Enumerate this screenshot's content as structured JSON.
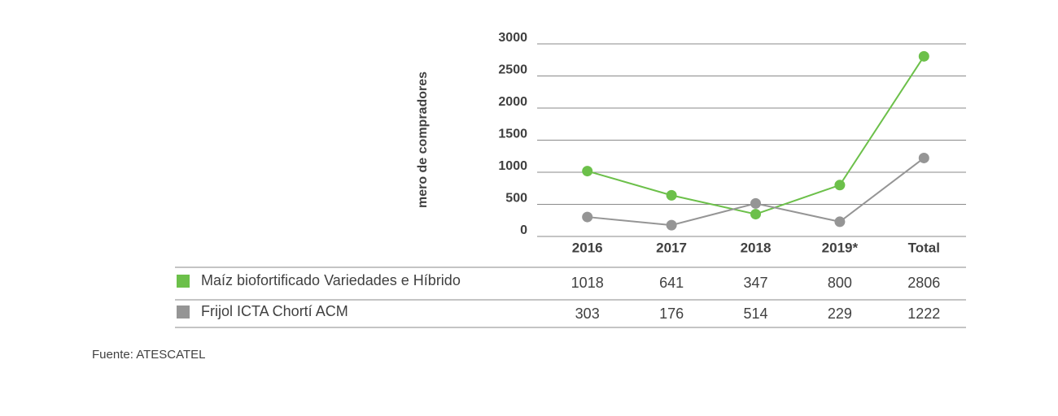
{
  "chart_data": {
    "type": "line",
    "y_label": "mero de compradores",
    "categories": [
      "2016",
      "2017",
      "2018",
      "2019*",
      "Total"
    ],
    "series": [
      {
        "name": "Maíz biofortificado Variedades e Híbrido",
        "color": "#6cc04a",
        "values": [
          1018,
          641,
          347,
          800,
          2806
        ]
      },
      {
        "name": "Frijol ICTA Chortí ACM",
        "color": "#959595",
        "values": [
          303,
          176,
          514,
          229,
          1222
        ]
      }
    ],
    "ylim": [
      0,
      3000
    ],
    "yticks": [
      0,
      500,
      1000,
      1500,
      2000,
      2500,
      3000
    ],
    "grid": true,
    "source": "Fuente: ATESCATEL"
  }
}
